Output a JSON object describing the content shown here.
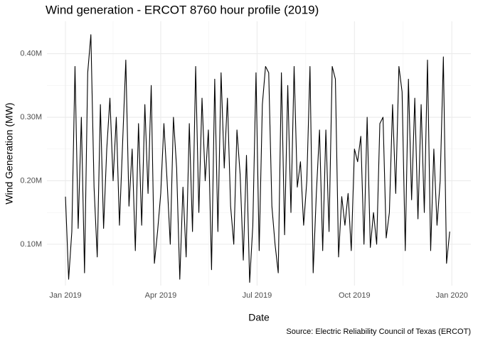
{
  "chart_data": {
    "type": "line",
    "title": "Wind generation - ERCOT 8760 hour profile (2019)",
    "x_label": "Date",
    "y_label": "Wind Generation (MW)",
    "caption": "Source: Electric Reliability Council of Texas (ERCOT)",
    "x": [
      0,
      3,
      6,
      9,
      12,
      15,
      18,
      21,
      24,
      27,
      30,
      33,
      36,
      39,
      42,
      45,
      48,
      51,
      54,
      57,
      60,
      63,
      66,
      69,
      72,
      75,
      78,
      81,
      84,
      87,
      90,
      93,
      96,
      99,
      102,
      105,
      108,
      111,
      114,
      117,
      120,
      123,
      126,
      129,
      132,
      135,
      138,
      141,
      144,
      147,
      150,
      153,
      156,
      159,
      162,
      165,
      168,
      171,
      174,
      177,
      180,
      183,
      186,
      189,
      192,
      195,
      198,
      201,
      204,
      207,
      210,
      213,
      216,
      219,
      222,
      225,
      228,
      231,
      234,
      237,
      240,
      243,
      246,
      249,
      252,
      255,
      258,
      261,
      264,
      267,
      270,
      273,
      276,
      279,
      282,
      285,
      288,
      291,
      294,
      297,
      300,
      303,
      306,
      309,
      312,
      315,
      318,
      321,
      324,
      327,
      330,
      333,
      336,
      339,
      342,
      345,
      348,
      351,
      354,
      357,
      360,
      363
    ],
    "series": [
      {
        "name": "Wind generation",
        "color": "#000000",
        "values": [
          175000,
          45000,
          120000,
          380000,
          125000,
          300000,
          55000,
          370000,
          430000,
          190000,
          80000,
          320000,
          125000,
          250000,
          330000,
          200000,
          300000,
          130000,
          260000,
          390000,
          160000,
          250000,
          90000,
          290000,
          130000,
          320000,
          180000,
          350000,
          70000,
          120000,
          180000,
          290000,
          200000,
          100000,
          300000,
          220000,
          45000,
          190000,
          80000,
          290000,
          120000,
          380000,
          150000,
          330000,
          200000,
          280000,
          60000,
          360000,
          120000,
          370000,
          220000,
          330000,
          160000,
          100000,
          280000,
          210000,
          75000,
          240000,
          40000,
          130000,
          370000,
          90000,
          320000,
          380000,
          370000,
          160000,
          100000,
          55000,
          370000,
          115000,
          350000,
          150000,
          380000,
          190000,
          230000,
          130000,
          200000,
          380000,
          55000,
          180000,
          280000,
          90000,
          280000,
          120000,
          380000,
          360000,
          80000,
          175000,
          130000,
          180000,
          90000,
          250000,
          230000,
          270000,
          100000,
          300000,
          95000,
          150000,
          100000,
          290000,
          300000,
          110000,
          150000,
          320000,
          180000,
          380000,
          340000,
          90000,
          360000,
          170000,
          330000,
          140000,
          320000,
          150000,
          390000,
          90000,
          250000,
          130000,
          200000,
          395000,
          70000,
          120000
        ]
      }
    ],
    "xlim": [
      -17.5,
      383
    ],
    "xticks": [
      {
        "value": 0,
        "label": "Jan 2019"
      },
      {
        "value": 90,
        "label": "Apr 2019"
      },
      {
        "value": 181,
        "label": "Jul 2019"
      },
      {
        "value": 273,
        "label": "Oct 2019"
      },
      {
        "value": 365,
        "label": "Jan 2020"
      }
    ],
    "ylim": [
      35000,
      451000
    ],
    "yticks": [
      {
        "value": 100000,
        "label": "0.10M"
      },
      {
        "value": 200000,
        "label": "0.20M"
      },
      {
        "value": 300000,
        "label": "0.30M"
      },
      {
        "value": 400000,
        "label": "0.40M"
      }
    ],
    "grid": true
  }
}
